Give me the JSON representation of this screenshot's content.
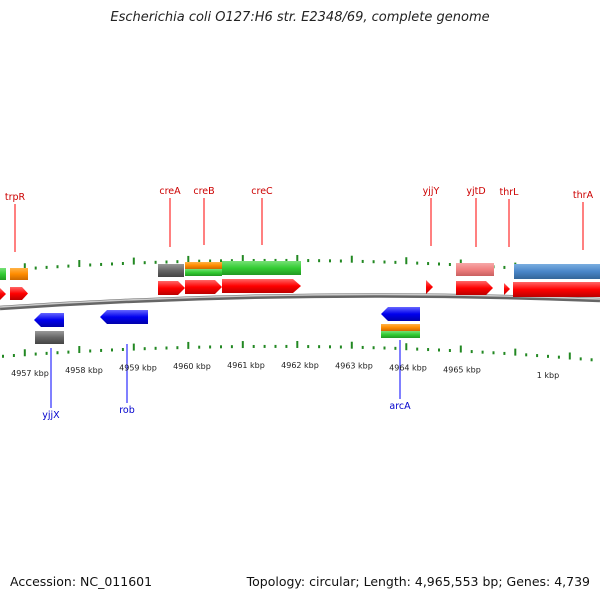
{
  "title": "Escherichia coli O127:H6 str. E2348/69, complete genome",
  "accession": "Accession: NC_011601",
  "topology": "Topology: circular; Length: 4,965,553 bp; Genes: 4,739",
  "colors": {
    "forward_gene": "#ff0000",
    "reverse_gene": "#0000ff",
    "forward_label": "#cc0000",
    "reverse_label": "#0000cc",
    "tick": "#228822",
    "backbone": "#777777",
    "feature_gray": "#666666",
    "feature_orange": "#ff8c00",
    "feature_green": "#33cc33",
    "feature_pink": "#f08080",
    "feature_steelblue": "#4a86c8"
  },
  "scale_labels": [
    "4957 kbp",
    "4958 kbp",
    "4959 kbp",
    "4960 kbp",
    "4961 kbp",
    "4962 kbp",
    "4963 kbp",
    "4964 kbp",
    "4965 kbp",
    "1 kbp"
  ],
  "top_labels": [
    "trpR",
    "creA",
    "creB",
    "creC",
    "yjjY",
    "yjtD",
    "thrL",
    "thrA"
  ],
  "bottom_labels": [
    "yjjX",
    "rob",
    "arcA"
  ]
}
